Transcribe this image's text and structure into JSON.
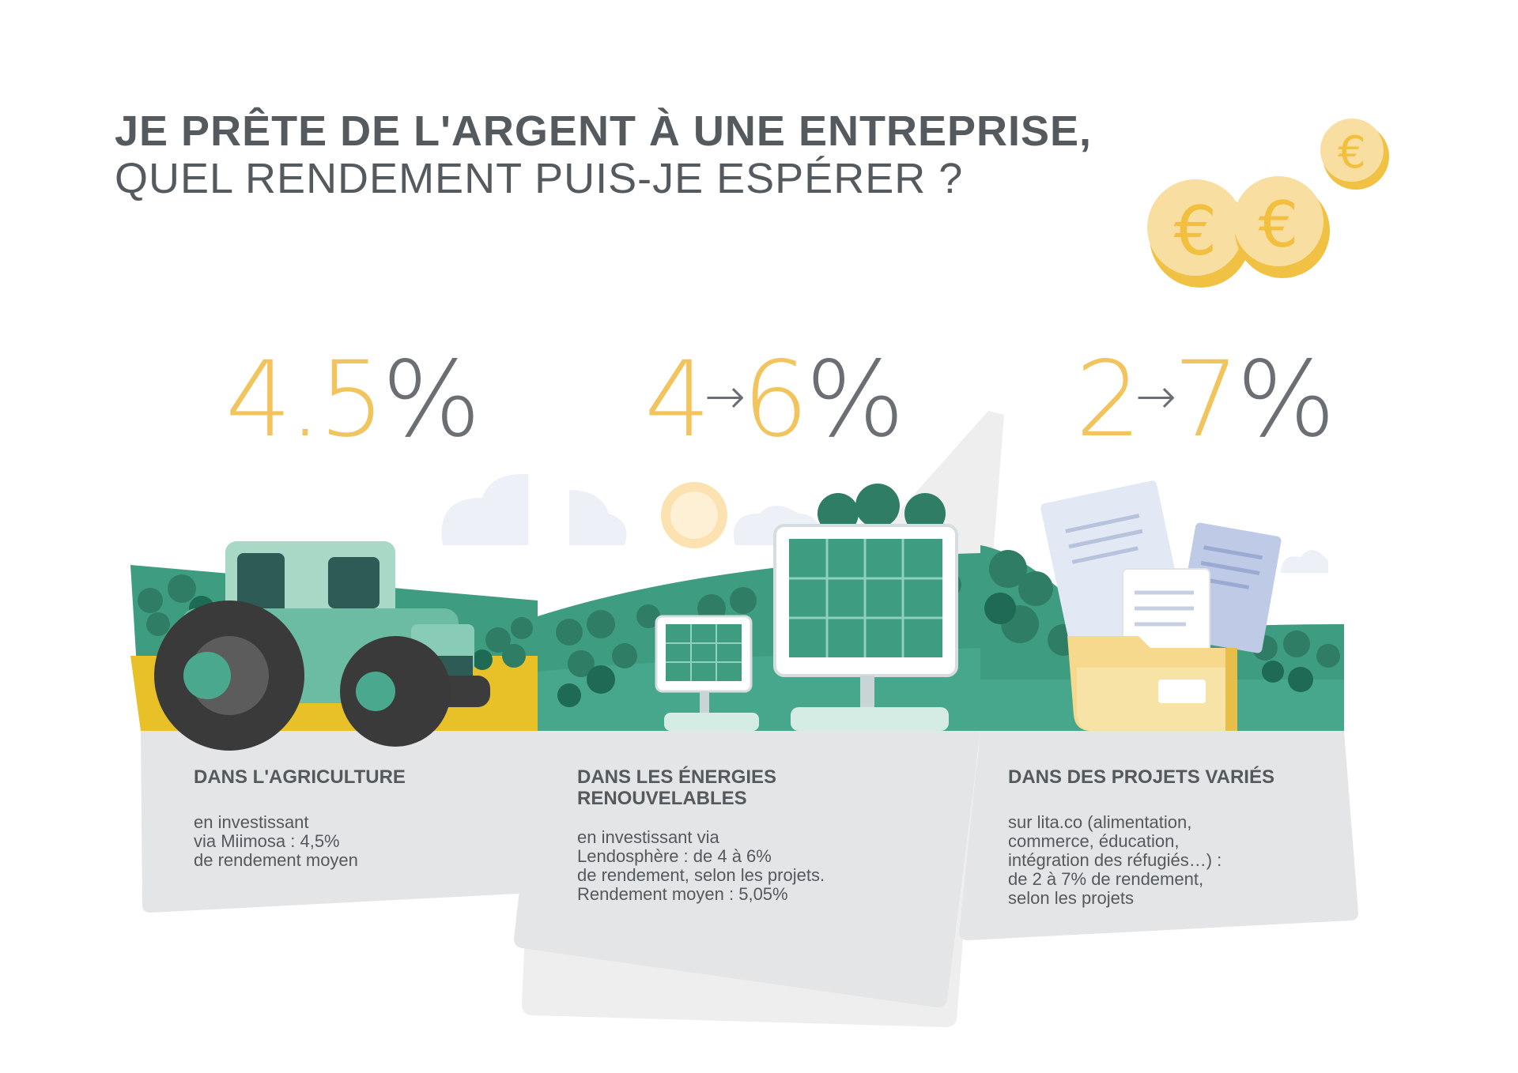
{
  "header": {
    "title_line1": "JE PRÊTE DE L'ARGENT À UNE ENTREPRISE,",
    "title_line2": "QUEL RENDEMENT PUIS-JE ESPÉRER ?"
  },
  "coins": {
    "symbol": "€",
    "count": 3,
    "icon": "euro-coin-icon"
  },
  "columns": [
    {
      "rate": {
        "value": "4.5",
        "percent": "%"
      },
      "illustration": "tractor-icon",
      "title": "DANS L'AGRICULTURE",
      "body": "en investissant\nvia Miimosa : 4,5%\nde rendement moyen"
    },
    {
      "rate": {
        "from": "4",
        "arrow": "→",
        "to": "6",
        "percent": "%"
      },
      "illustration": "solar-panel-icon",
      "title": "DANS LES ÉNERGIES\nRENOUVELABLES",
      "body": "en investissant via\nLendosphère : de 4 à 6%\nde rendement, selon les projets.\nRendement moyen : 5,05%"
    },
    {
      "rate": {
        "from": "2",
        "arrow": "→",
        "to": "7",
        "percent": "%"
      },
      "illustration": "folder-documents-icon",
      "title": "DANS DES PROJETS VARIÉS",
      "body": "sur lita.co (alimentation,\ncommerce, éducation,\nintégration des réfugiés…) :\nde 2 à 7% de rendement,\nselon les projets"
    }
  ],
  "colors": {
    "accent_yellow": "#f2c45e",
    "text_gray": "#555a5e",
    "dark_green": "#2f7d64",
    "teal": "#4aa88f",
    "card_gray": "#e6e7e8"
  }
}
